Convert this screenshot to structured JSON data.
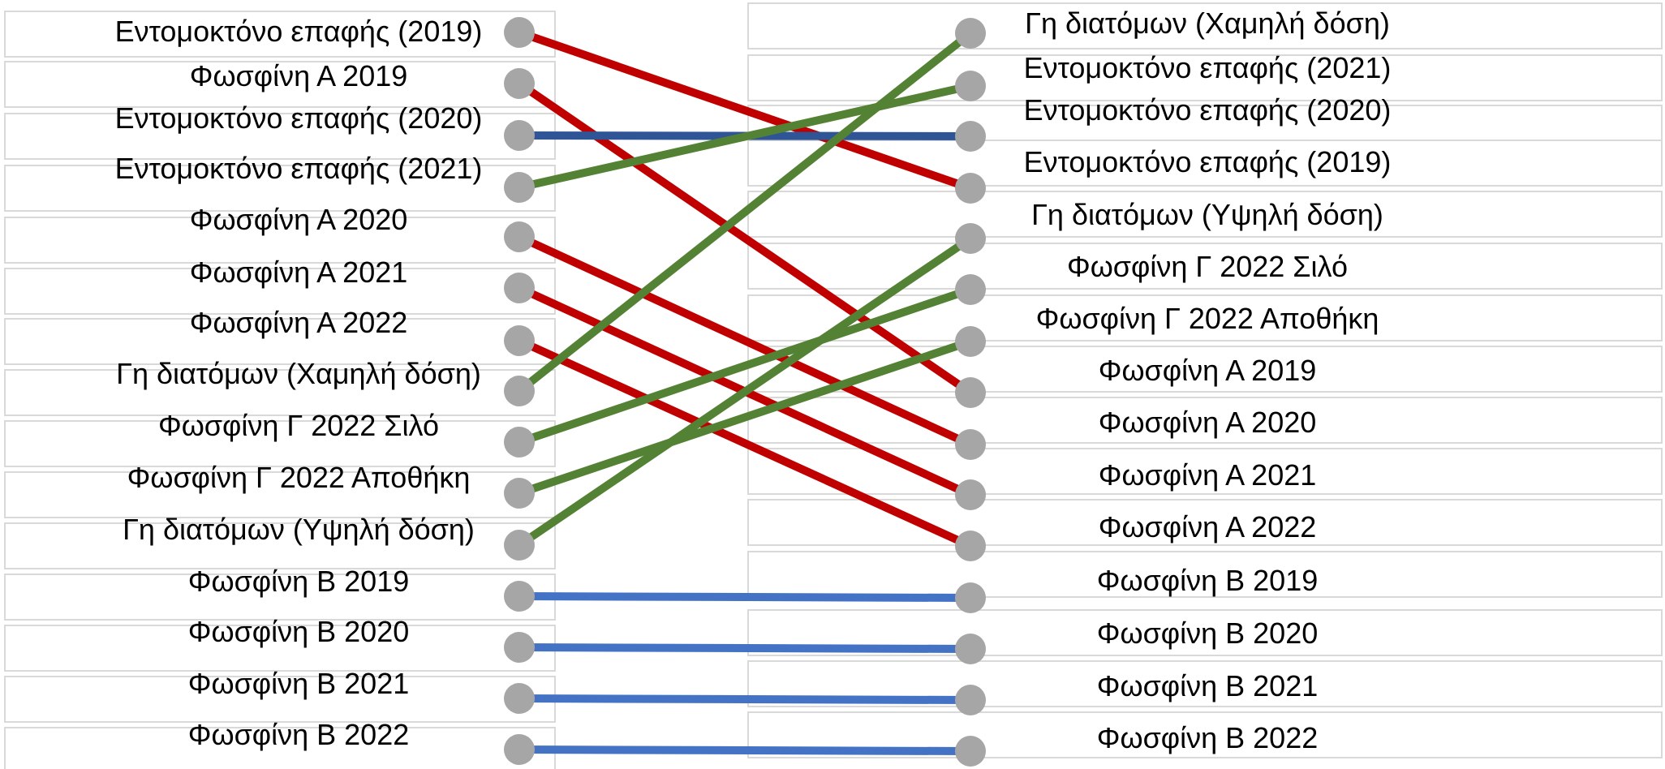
{
  "left_labels": [
    "Εντομοκτόνο επαφής (2019)",
    "Φωσφίνη Α 2019",
    "Εντομοκτόνο επαφής (2020)",
    "Εντομοκτόνο επαφής (2021)",
    "Φωσφίνη Α 2020",
    "Φωσφίνη Α 2021",
    "Φωσφίνη Α 2022",
    "Γη διατόμων (Χαμηλή δόση)",
    "Φωσφίνη Γ 2022 Σιλό",
    "Φωσφίνη Γ 2022 Αποθήκη",
    "Γη διατόμων (Υψηλή δόση)",
    "Φωσφίνη Β 2019",
    "Φωσφίνη Β 2020",
    "Φωσφίνη Β 2021",
    "Φωσφίνη Β 2022"
  ],
  "right_labels": [
    "Γη διατόμων (Χαμηλή δόση)",
    "Εντομοκτόνο επαφής (2021)",
    "Εντομοκτόνο επαφής (2020)",
    "Εντομοκτόνο επαφής (2019)",
    "Γη διατόμων (Υψηλή δόση)",
    "Φωσφίνη Γ 2022 Σιλό",
    "Φωσφίνη Γ 2022 Αποθήκη",
    "Φωσφίνη Α 2019",
    "Φωσφίνη Α 2020",
    "Φωσφίνη Α 2021",
    "Φωσφίνη Α 2022",
    "Φωσφίνη Β 2019",
    "Φωσφίνη Β 2020",
    "Φωσφίνη Β 2021",
    "Φωσφίνη Β 2022"
  ],
  "connections": [
    {
      "from": 0,
      "to": 3,
      "color": "#c00000"
    },
    {
      "from": 1,
      "to": 7,
      "color": "#c00000"
    },
    {
      "from": 2,
      "to": 2,
      "color": "#2f5597"
    },
    {
      "from": 3,
      "to": 1,
      "color": "#548235"
    },
    {
      "from": 4,
      "to": 8,
      "color": "#c00000"
    },
    {
      "from": 5,
      "to": 9,
      "color": "#c00000"
    },
    {
      "from": 6,
      "to": 10,
      "color": "#c00000"
    },
    {
      "from": 7,
      "to": 0,
      "color": "#548235"
    },
    {
      "from": 8,
      "to": 5,
      "color": "#548235"
    },
    {
      "from": 9,
      "to": 6,
      "color": "#548235"
    },
    {
      "from": 10,
      "to": 4,
      "color": "#548235"
    },
    {
      "from": 11,
      "to": 11,
      "color": "#4472c4"
    },
    {
      "from": 12,
      "to": 12,
      "color": "#4472c4"
    },
    {
      "from": 13,
      "to": 13,
      "color": "#4472c4"
    },
    {
      "from": 14,
      "to": 14,
      "color": "#4472c4"
    }
  ],
  "colors": {
    "node": "#a6a6a6",
    "cell_border": "#d9d9d9",
    "red": "#c00000",
    "green": "#548235",
    "dark_blue": "#2f5597",
    "blue": "#4472c4"
  }
}
